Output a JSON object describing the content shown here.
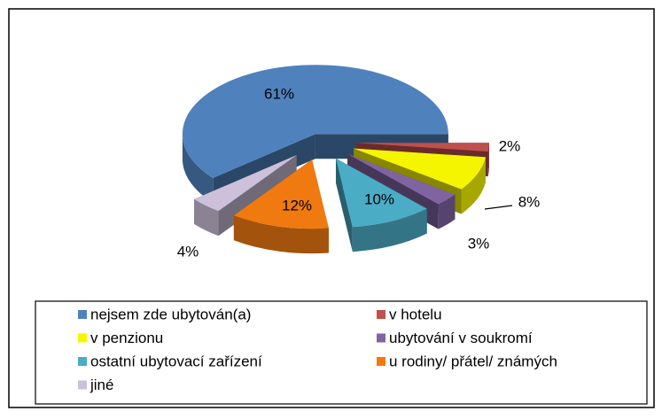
{
  "chart_data": {
    "type": "pie",
    "categories": [
      "nejsem zde ubytován(a)",
      "v hotelu",
      "v penzionu",
      "ubytování v soukromí",
      "ostatní ubytovací zařízení",
      "u rodiny/ přátel/ známých",
      "jiné"
    ],
    "values": [
      61,
      2,
      8,
      3,
      10,
      12,
      4
    ],
    "value_labels": [
      "61%",
      "2%",
      "8%",
      "3%",
      "10%",
      "12%",
      "4%"
    ],
    "colors": [
      "#4f81bd",
      "#c0504d",
      "#f5f500",
      "#8064a2",
      "#4bacc6",
      "#f07a10",
      "#ccc0da"
    ],
    "legend": "bottom"
  }
}
